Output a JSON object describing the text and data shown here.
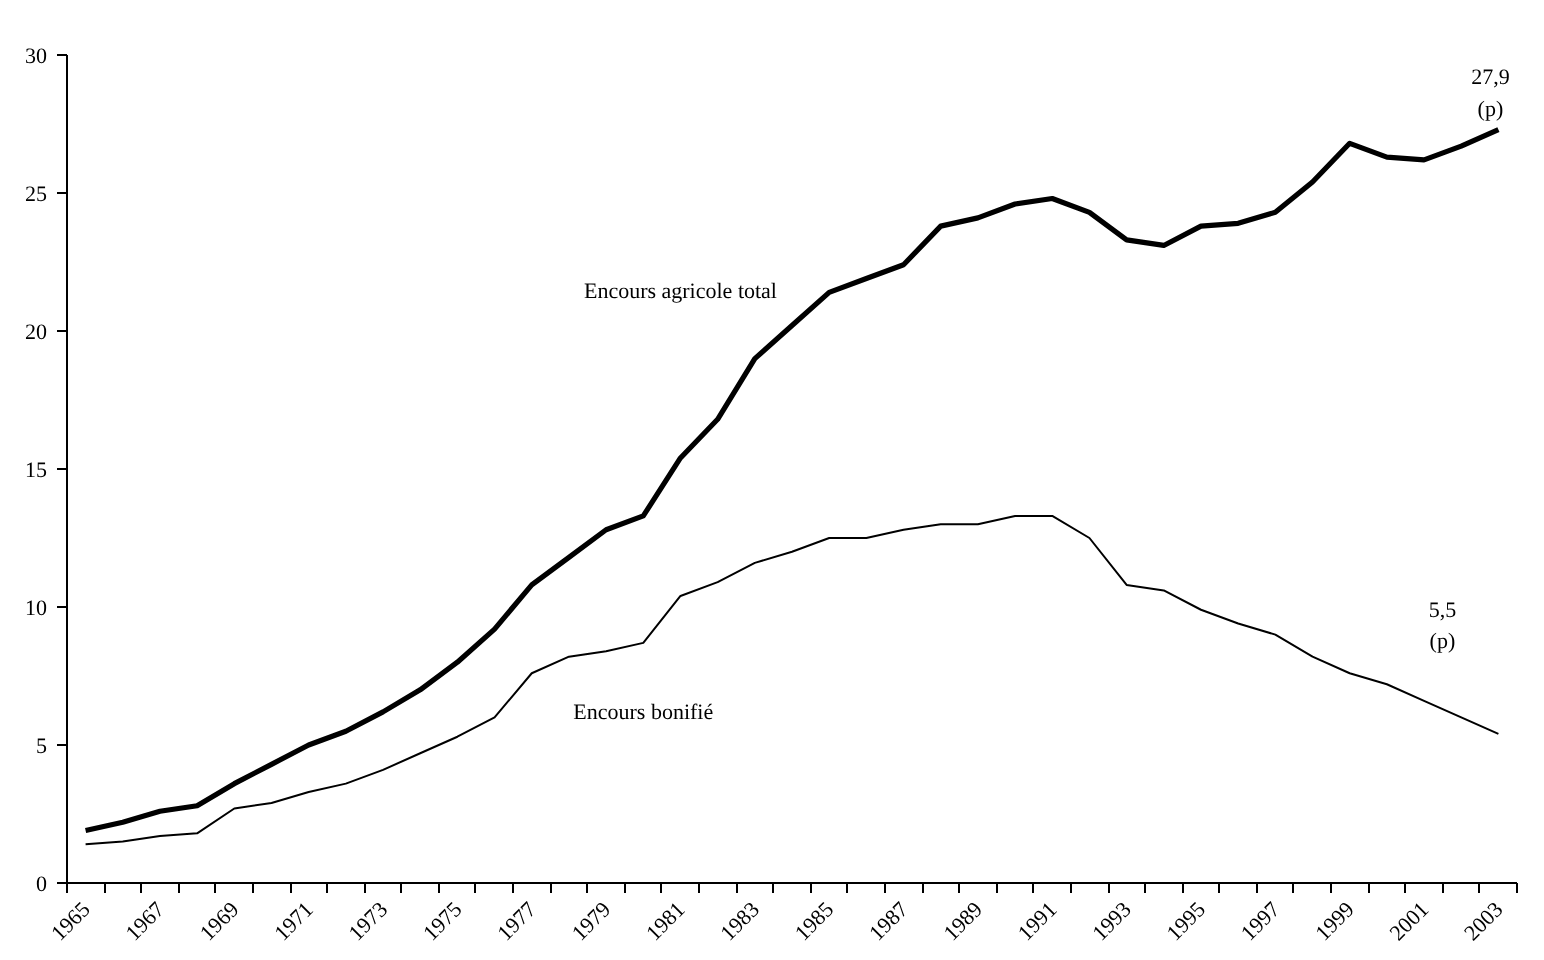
{
  "chart_data": {
    "type": "line",
    "categories": [
      "1965",
      null,
      "1967",
      null,
      "1969",
      null,
      "1971",
      null,
      "1973",
      null,
      "1975",
      null,
      "1977",
      null,
      "1979",
      null,
      "1981",
      null,
      "1983",
      null,
      "1985",
      null,
      "1987",
      null,
      "1989",
      null,
      "1991",
      null,
      "1993",
      null,
      "1995",
      null,
      "1997",
      null,
      "1999",
      null,
      "2001",
      null,
      "2003"
    ],
    "series": [
      {
        "name": "Encours agricole total",
        "color": "#000000",
        "values": [
          1.9,
          2.2,
          2.6,
          2.8,
          3.6,
          4.3,
          5.0,
          5.5,
          6.2,
          7.0,
          8.0,
          9.2,
          10.8,
          11.8,
          12.8,
          13.3,
          15.4,
          16.8,
          19.0,
          20.2,
          21.4,
          21.9,
          22.4,
          23.8,
          24.1,
          24.6,
          24.8,
          24.3,
          23.3,
          23.1,
          23.8,
          23.9,
          24.3,
          25.4,
          26.8,
          26.3,
          26.2,
          26.7,
          27.3
        ]
      },
      {
        "name": "Encours bonifié",
        "color": "#000000",
        "values": [
          1.4,
          1.5,
          1.7,
          1.8,
          2.7,
          2.9,
          3.3,
          3.6,
          4.1,
          4.7,
          5.3,
          6.0,
          7.6,
          8.2,
          8.4,
          8.7,
          10.4,
          10.9,
          11.6,
          12.0,
          12.5,
          12.5,
          12.8,
          13.0,
          13.0,
          13.3,
          13.3,
          12.5,
          10.8,
          10.6,
          9.9,
          9.4,
          9.0,
          8.2,
          7.6,
          7.2,
          6.6,
          6.0,
          5.4
        ]
      }
    ],
    "ylim": [
      0,
      30
    ],
    "yticks": [
      0,
      5,
      10,
      15,
      20,
      25,
      30
    ],
    "annotations": [
      "27,9\n(p)",
      "5,5\n(p)"
    ]
  }
}
